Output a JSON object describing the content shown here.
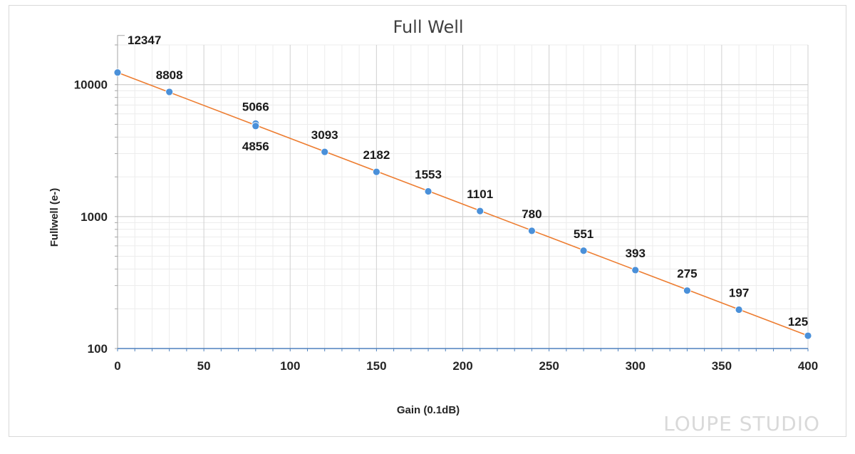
{
  "chart_data": {
    "type": "scatter",
    "title": "Full Well",
    "xlabel": "Gain (0.1dB)",
    "ylabel": "Fullwell (e-)",
    "xlim": [
      0,
      400
    ],
    "ylim": [
      100,
      20000
    ],
    "yscale": "log",
    "x_ticks": [
      "0",
      "50",
      "100",
      "150",
      "200",
      "250",
      "300",
      "350",
      "400"
    ],
    "y_ticks": [
      "100",
      "1000",
      "10000"
    ],
    "grid": true,
    "trendline": {
      "type": "exponential",
      "color": "#ED7D31",
      "from": [
        0,
        12347
      ],
      "to": [
        400,
        125
      ]
    },
    "series": [
      {
        "name": "Full Well",
        "color": "#4A90D9",
        "points": [
          {
            "x": 0,
            "y": 12347,
            "label": "12347"
          },
          {
            "x": 30,
            "y": 8808,
            "label": "8808"
          },
          {
            "x": 80,
            "y": 5066,
            "label": "5066"
          },
          {
            "x": 80,
            "y": 4856,
            "label": "4856"
          },
          {
            "x": 120,
            "y": 3093,
            "label": "3093"
          },
          {
            "x": 150,
            "y": 2182,
            "label": "2182"
          },
          {
            "x": 180,
            "y": 1553,
            "label": "1553"
          },
          {
            "x": 210,
            "y": 1101,
            "label": "1101"
          },
          {
            "x": 240,
            "y": 780,
            "label": "780"
          },
          {
            "x": 270,
            "y": 551,
            "label": "551"
          },
          {
            "x": 300,
            "y": 393,
            "label": "393"
          },
          {
            "x": 330,
            "y": 275,
            "label": "275"
          },
          {
            "x": 360,
            "y": 197,
            "label": "197"
          },
          {
            "x": 400,
            "y": 125,
            "label": "125"
          }
        ]
      }
    ]
  },
  "watermark": {
    "text": "LOUPE STUDIO"
  }
}
